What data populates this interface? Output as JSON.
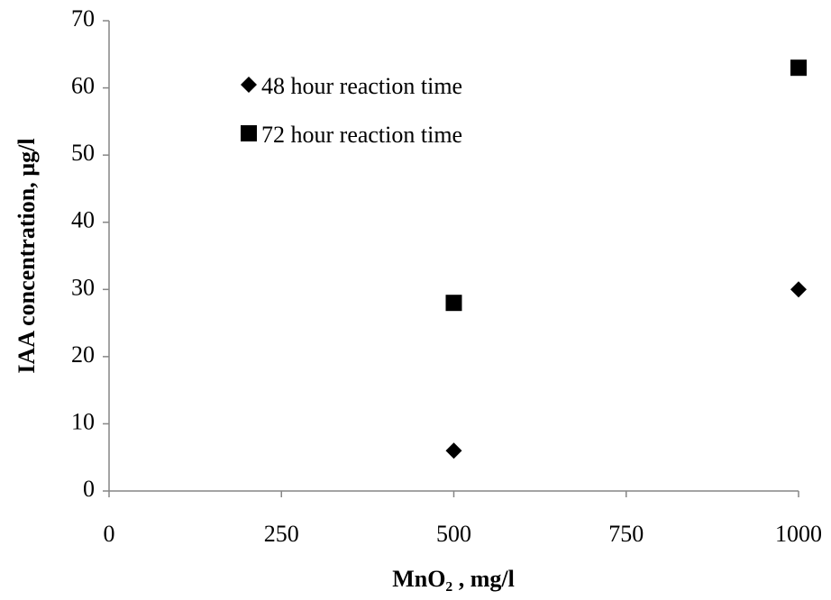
{
  "chart_data": {
    "type": "scatter",
    "xlabel": "MnO₂ , mg/l",
    "ylabel": "IAA concentration, µg/l",
    "x": [
      500,
      1000
    ],
    "series": [
      {
        "name": "48 hour reaction time",
        "color": "#000000",
        "marker": "diamond",
        "values": [
          6,
          30
        ]
      },
      {
        "name": "72 hour reaction time",
        "color": "#000000",
        "marker": "square",
        "values": [
          28,
          63
        ]
      }
    ],
    "xlim": [
      0,
      1000
    ],
    "xticks": [
      0,
      250,
      500,
      750,
      1000
    ],
    "ylim": [
      0,
      70
    ],
    "yticks": [
      0,
      10,
      20,
      30,
      40,
      50,
      60,
      70
    ],
    "grid": false,
    "legend": "upper left"
  }
}
